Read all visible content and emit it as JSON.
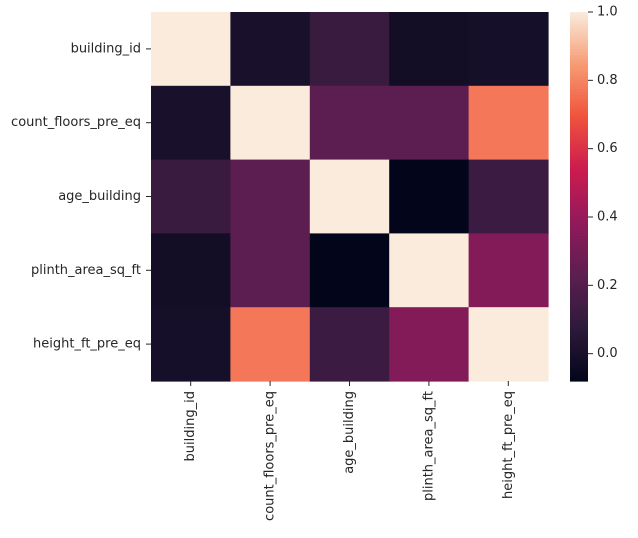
{
  "chart_data": {
    "type": "heatmap",
    "title": "",
    "xlabel": "",
    "ylabel": "",
    "rows": [
      "building_id",
      "count_floors_pre_eq",
      "age_building",
      "plinth_area_sq_ft",
      "height_ft_pre_eq"
    ],
    "columns": [
      "building_id",
      "count_floors_pre_eq",
      "age_building",
      "plinth_area_sq_ft",
      "height_ft_pre_eq"
    ],
    "values": [
      [
        1.0,
        0.0,
        0.11,
        -0.02,
        -0.01
      ],
      [
        0.0,
        1.0,
        0.23,
        0.23,
        0.77
      ],
      [
        0.11,
        0.23,
        1.0,
        -0.08,
        0.12
      ],
      [
        -0.02,
        0.23,
        -0.08,
        1.0,
        0.34
      ],
      [
        -0.01,
        0.77,
        0.12,
        0.34,
        1.0
      ]
    ],
    "colorbar": {
      "min": -0.08,
      "max": 1.0,
      "ticks": [
        "0.0",
        "0.2",
        "0.4",
        "0.6",
        "0.8",
        "1.0"
      ],
      "tick_values": [
        0.0,
        0.2,
        0.4,
        0.6,
        0.8,
        1.0
      ]
    },
    "colormap": "rocket",
    "colormap_stops": [
      "#03051a",
      "#2d1a3a",
      "#5c1e50",
      "#911a5b",
      "#cb1b4f",
      "#f0523c",
      "#f69b73",
      "#faebdd"
    ]
  }
}
